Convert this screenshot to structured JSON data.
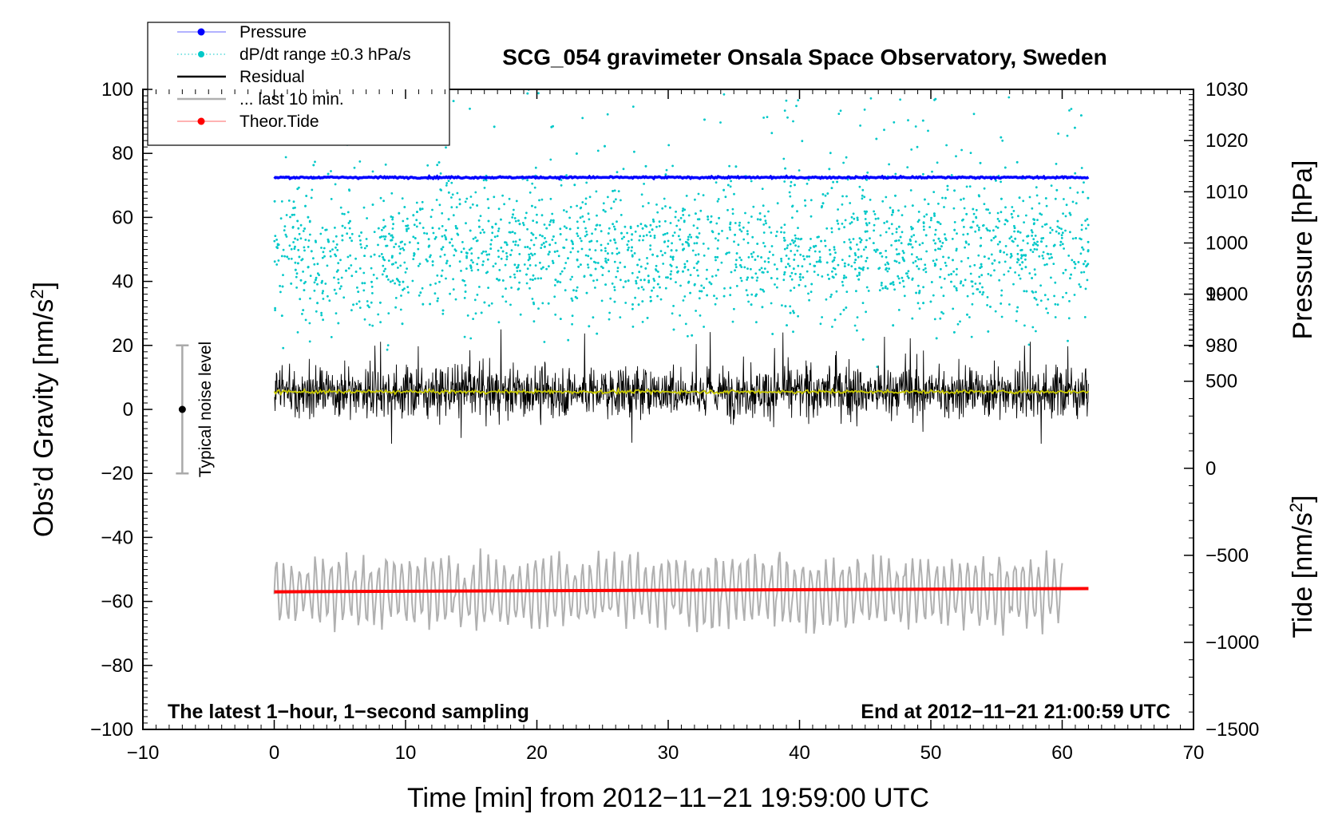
{
  "chart_data": {
    "type": "line",
    "title": "SCG_054 gravimeter Onsala Space Observatory, Sweden",
    "xlabel": "Time [min] from 2012−11−21 19:59:00 UTC",
    "ylabel_left": "Obs’d Gravity [nm/s²]",
    "ylabel_right_top": "Pressure [hPa]",
    "ylabel_right_bottom": "Tide [nm/s²]",
    "xlim": [
      -10,
      70
    ],
    "ylim_left": [
      -100,
      100
    ],
    "pressure_axis_range": [
      980,
      1030
    ],
    "tide_axis_range": [
      -1500,
      1000
    ],
    "x_ticks": [
      "−10",
      "0",
      "10",
      "20",
      "30",
      "40",
      "50",
      "60",
      "70"
    ],
    "y_ticks_left": [
      "−100",
      "−80",
      "−60",
      "−40",
      "−20",
      "0",
      "20",
      "40",
      "60",
      "80",
      "100"
    ],
    "y_ticks_pressure": [
      "980",
      "990",
      "1000",
      "1010",
      "1020",
      "1030"
    ],
    "y_ticks_tide": [
      "−1500",
      "−1000",
      "−500",
      "0",
      "500",
      "1000"
    ],
    "legend": [
      {
        "label": "Pressure",
        "color": "#0000ff",
        "style": "line-dot"
      },
      {
        "label": "dP/dt range ±0.3 hPa/s",
        "color": "#00c8c8",
        "style": "dots"
      },
      {
        "label": "Residual",
        "color": "#000000",
        "style": "line"
      },
      {
        "label": "... last 10 min.",
        "color": "#b0b0b0",
        "style": "line"
      },
      {
        "label": "Theor.Tide",
        "color": "#ff0000",
        "style": "line-dot"
      }
    ],
    "series": [
      {
        "name": "Pressure",
        "axis": "pressure",
        "x_range": [
          0,
          62
        ],
        "mean": 1012.8,
        "unit": "hPa"
      },
      {
        "name": "dP/dt range ±0.3 hPa/s",
        "axis": "left",
        "x_range": [
          0,
          62
        ],
        "center": 50,
        "spread": 30
      },
      {
        "name": "Residual",
        "axis": "left",
        "x_range": [
          0,
          62
        ],
        "center": 5.5,
        "typical_amplitude": 10
      },
      {
        "name": "Residual smoothed",
        "axis": "left",
        "x_range": [
          0,
          62
        ],
        "value": 5.5,
        "color": "#c8c800"
      },
      {
        "name": "... last 10 min.",
        "axis": "left",
        "x_range": [
          0,
          60
        ],
        "center": -57,
        "amplitude": 10
      },
      {
        "name": "Theor.Tide",
        "axis": "left",
        "points": [
          [
            0,
            -57
          ],
          [
            62,
            -56
          ]
        ]
      }
    ],
    "noise_bar": {
      "label": "Typical noise level",
      "x": -7,
      "center": 0,
      "range": [
        -20,
        20
      ]
    },
    "annotation_left": "The latest 1−hour, 1−second sampling",
    "annotation_right": "End at 2012−11−21 21:00:59 UTC"
  },
  "colors": {
    "pressure": "#0000ff",
    "dpdt": "#00c8c8",
    "residual": "#000000",
    "residual_smooth": "#c8c800",
    "last10": "#b0b0b0",
    "tide": "#ff0000",
    "noise_bar": "#aaaaaa"
  }
}
